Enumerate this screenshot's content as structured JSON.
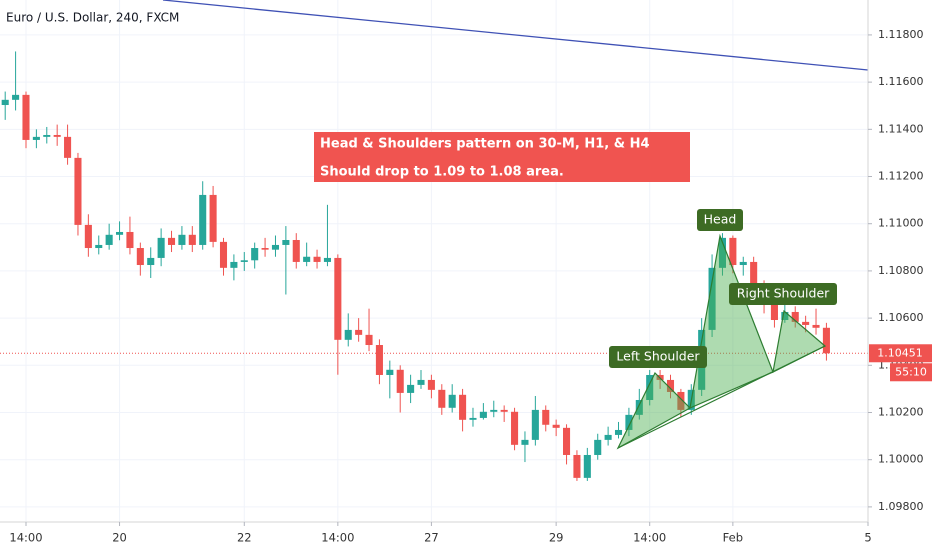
{
  "chart_data": {
    "type": "candlestick",
    "title": "Euro / U.S. Dollar, 240, FXCM",
    "xlim": [
      -0.5,
      83
    ],
    "xticks": [
      {
        "value": 2,
        "label": "14:00"
      },
      {
        "value": 11,
        "label": "20"
      },
      {
        "value": 23,
        "label": "22"
      },
      {
        "value": 32,
        "label": "14:00"
      },
      {
        "value": 41,
        "label": "27"
      },
      {
        "value": 53,
        "label": "29"
      },
      {
        "value": 62,
        "label": "14:00"
      },
      {
        "value": 70,
        "label": "Feb"
      },
      {
        "value": 83,
        "label": "5"
      }
    ],
    "ylim": [
      1.09736,
      1.11948
    ],
    "yticks": [
      {
        "value": 1.098,
        "label": "1.09800"
      },
      {
        "value": 1.1,
        "label": "1.10000"
      },
      {
        "value": 1.102,
        "label": "1.10200"
      },
      {
        "value": 1.104,
        "label": "1.10400"
      },
      {
        "value": 1.106,
        "label": "1.10600"
      },
      {
        "value": 1.108,
        "label": "1.10800"
      },
      {
        "value": 1.11,
        "label": "1.11000"
      },
      {
        "value": 1.112,
        "label": "1.11200"
      },
      {
        "value": 1.114,
        "label": "1.11400"
      },
      {
        "value": 1.116,
        "label": "1.11600"
      },
      {
        "value": 1.118,
        "label": "1.11800"
      }
    ],
    "grid": true,
    "up_color": "#26a69a",
    "down_color": "#ef5350",
    "open": [
      1.11503,
      1.11525,
      1.11546,
      1.11355,
      1.11368,
      1.11376,
      1.11368,
      1.11279,
      1.10995,
      1.10897,
      1.1091,
      1.10953,
      1.10965,
      1.10897,
      1.10825,
      1.10855,
      1.1094,
      1.1091,
      1.10953,
      1.1091,
      1.11122,
      1.10923,
      1.10813,
      1.10838,
      1.10845,
      1.10897,
      1.1089,
      1.1091,
      1.10931,
      1.10838,
      1.1086,
      1.10838,
      1.10855,
      1.10508,
      1.1055,
      1.10529,
      1.10486,
      1.10359,
      1.10381,
      1.10283,
      1.10317,
      1.10338,
      1.10296,
      1.1022,
      1.10275,
      1.10169,
      1.10177,
      1.10203,
      1.10211,
      1.10203,
      1.10063,
      1.10084,
      1.10211,
      1.10148,
      1.10135,
      1.1002,
      1.09923,
      1.1002,
      1.10084,
      1.10105,
      1.10126,
      1.1019,
      1.10253,
      1.10359,
      1.10338,
      1.10287,
      1.10211,
      1.10296,
      1.1055,
      1.10813,
      1.1094,
      1.10825,
      1.10838,
      1.10741,
      1.10656,
      1.10592,
      1.10626,
      1.10584,
      1.10571,
      1.10559
    ],
    "high": [
      1.1156,
      1.1173,
      1.1156,
      1.114,
      1.1141,
      1.1142,
      1.1142,
      1.113,
      1.1104,
      1.1095,
      1.11,
      1.1101,
      1.1103,
      1.1092,
      1.109,
      1.1098,
      1.1097,
      1.1099,
      1.1099,
      1.1118,
      1.1116,
      1.1094,
      1.1087,
      1.1088,
      1.1092,
      1.1094,
      1.1095,
      1.1099,
      1.1096,
      1.1092,
      1.1089,
      1.1108,
      1.1087,
      1.1062,
      1.106,
      1.1064,
      1.1051,
      1.1042,
      1.104,
      1.1036,
      1.1038,
      1.1036,
      1.1032,
      1.1032,
      1.103,
      1.1022,
      1.1024,
      1.1025,
      1.1023,
      1.1022,
      1.1012,
      1.1027,
      1.1023,
      1.1017,
      1.1015,
      1.1004,
      1.1005,
      1.1011,
      1.1014,
      1.1016,
      1.1022,
      1.103,
      1.1038,
      1.1038,
      1.1036,
      1.103,
      1.1032,
      1.106,
      1.1087,
      1.1096,
      1.1095,
      1.1086,
      1.1086,
      1.1076,
      1.1068,
      1.1066,
      1.1065,
      1.1061,
      1.1064,
      1.1058
    ],
    "low": [
      1.1144,
      1.1148,
      1.1132,
      1.1132,
      1.1134,
      1.1133,
      1.1125,
      1.1095,
      1.1086,
      1.1087,
      1.1089,
      1.1093,
      1.1087,
      1.1078,
      1.1077,
      1.1082,
      1.1088,
      1.1089,
      1.1088,
      1.1089,
      1.109,
      1.1078,
      1.1076,
      1.108,
      1.1081,
      1.1086,
      1.1086,
      1.107,
      1.1081,
      1.1082,
      1.1081,
      1.1082,
      1.1036,
      1.1048,
      1.105,
      1.1046,
      1.1032,
      1.1026,
      1.102,
      1.1024,
      1.103,
      1.1026,
      1.1019,
      1.102,
      1.1012,
      1.1014,
      1.1017,
      1.1018,
      1.1016,
      1.1004,
      1.0999,
      1.1006,
      1.1012,
      1.101,
      1.0998,
      1.0991,
      1.0991,
      1.1,
      1.1006,
      1.1009,
      1.101,
      1.1017,
      1.1023,
      1.103,
      1.1026,
      1.1018,
      1.1019,
      1.1027,
      1.1052,
      1.1078,
      1.1079,
      1.1078,
      1.107,
      1.1062,
      1.1056,
      1.1058,
      1.1056,
      1.1054,
      1.1053,
      1.1042
    ],
    "close": [
      1.11525,
      1.11546,
      1.11355,
      1.11368,
      1.11376,
      1.11368,
      1.11279,
      1.10995,
      1.10897,
      1.1091,
      1.10953,
      1.10965,
      1.10897,
      1.10825,
      1.10855,
      1.1094,
      1.1091,
      1.10953,
      1.1091,
      1.11122,
      1.10923,
      1.10813,
      1.10838,
      1.10845,
      1.10897,
      1.1089,
      1.1091,
      1.10931,
      1.10838,
      1.1086,
      1.10838,
      1.10855,
      1.10508,
      1.1055,
      1.10529,
      1.10486,
      1.10359,
      1.10381,
      1.10283,
      1.10317,
      1.10338,
      1.10296,
      1.1022,
      1.10275,
      1.10169,
      1.10177,
      1.10203,
      1.10211,
      1.10203,
      1.10063,
      1.10084,
      1.10211,
      1.10148,
      1.10135,
      1.1002,
      1.09923,
      1.1002,
      1.10084,
      1.10105,
      1.10126,
      1.1019,
      1.10253,
      1.10359,
      1.10338,
      1.10287,
      1.10211,
      1.10296,
      1.1055,
      1.10813,
      1.1094,
      1.10825,
      1.10838,
      1.10741,
      1.10656,
      1.10592,
      1.10626,
      1.10584,
      1.10571,
      1.10559,
      1.10451
    ],
    "countdown": "55:10",
    "annotations": {
      "note_line1": "Head & Shoulders pattern on 30-M, H1, & H4",
      "note_line2": "Should drop to 1.09 to 1.08 area.",
      "head": "Head",
      "left_shoulder": "Left Shoulder",
      "right_shoulder": "Right Shoulder"
    }
  }
}
